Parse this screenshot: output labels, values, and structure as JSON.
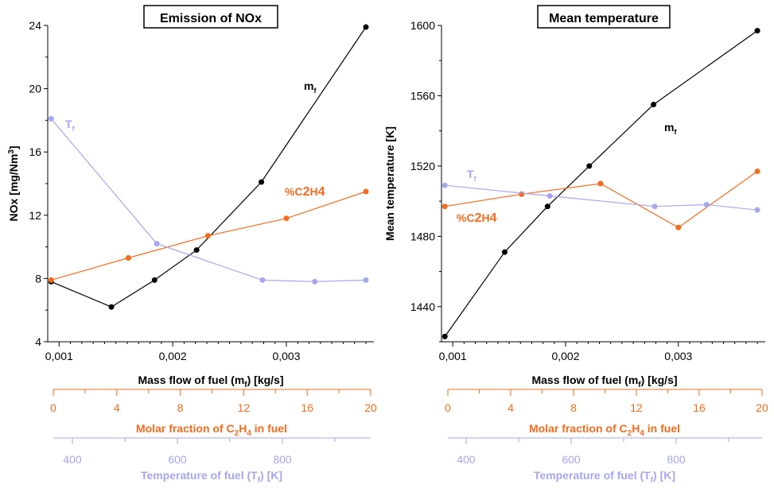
{
  "colors": {
    "mf": "#000000",
    "c2h4": "#f26b1d",
    "tf": "#a6a6f0",
    "axis": "#000000"
  },
  "shared_axes": {
    "x_mf": {
      "label": "Mass flow of fuel (m",
      "sub": "f",
      "tail": ") [kg/s]",
      "ticks": [
        "0,001",
        "0,002",
        "0,003"
      ]
    },
    "x_c2h4": {
      "label_pre": "Molar fraction of C",
      "sub1": "2",
      "mid": "H",
      "sub2": "4",
      "label_post": " in fuel",
      "ticks": [
        "0",
        "4",
        "8",
        "12",
        "16",
        "20"
      ]
    },
    "x_tf": {
      "label": "Temperature of fuel (T",
      "sub": "f",
      "tail": ") [K]",
      "ticks": [
        "400",
        "600",
        "800"
      ]
    }
  },
  "chart_data": [
    {
      "type": "line",
      "title": "Emission of NOx",
      "ylabel": "NOx [mg/Nm3]",
      "ylim": [
        4,
        24
      ],
      "yticks": [
        4,
        8,
        12,
        16,
        20,
        24
      ],
      "series": [
        {
          "name": "mf",
          "label": "m",
          "label_sub": "f",
          "color": "#000000",
          "points": [
            [
              0.00093,
              7.8
            ],
            [
              0.00146,
              6.2
            ],
            [
              0.00184,
              7.9
            ],
            [
              0.00221,
              9.8
            ],
            [
              0.00278,
              14.1
            ],
            [
              0.0037,
              23.9
            ]
          ]
        },
        {
          "name": "%C2H4",
          "label": "%C2H4",
          "color": "#f26b1d",
          "points": [
            [
              0.00093,
              7.9
            ],
            [
              0.00161,
              9.3
            ],
            [
              0.00231,
              10.7
            ],
            [
              0.003,
              11.8
            ],
            [
              0.0037,
              13.5
            ]
          ]
        },
        {
          "name": "Tf",
          "label": "T",
          "label_sub": "f",
          "color": "#a6a6f0",
          "points": [
            [
              0.00093,
              18.1
            ],
            [
              0.00186,
              10.2
            ],
            [
              0.00279,
              7.9
            ],
            [
              0.00325,
              7.8
            ],
            [
              0.0037,
              7.9
            ]
          ]
        }
      ]
    },
    {
      "type": "line",
      "title": "Mean temperature",
      "ylabel": "Mean temperature [K]",
      "ylim": [
        1420,
        1600
      ],
      "yticks": [
        1440,
        1480,
        1520,
        1560,
        1600
      ],
      "series": [
        {
          "name": "mf",
          "label": "m",
          "label_sub": "f",
          "color": "#000000",
          "points": [
            [
              0.00093,
              1423
            ],
            [
              0.00146,
              1471
            ],
            [
              0.00184,
              1497
            ],
            [
              0.00221,
              1520
            ],
            [
              0.00278,
              1555
            ],
            [
              0.0037,
              1597
            ]
          ]
        },
        {
          "name": "%C2H4",
          "label": "%C2H4",
          "color": "#f26b1d",
          "points": [
            [
              0.00093,
              1497
            ],
            [
              0.00161,
              1504
            ],
            [
              0.00231,
              1510
            ],
            [
              0.003,
              1485
            ],
            [
              0.0037,
              1517
            ]
          ]
        },
        {
          "name": "Tf",
          "label": "T",
          "label_sub": "f",
          "color": "#a6a6f0",
          "points": [
            [
              0.00093,
              1509
            ],
            [
              0.00186,
              1503
            ],
            [
              0.00279,
              1497
            ],
            [
              0.00325,
              1498
            ],
            [
              0.0037,
              1495
            ]
          ]
        }
      ]
    }
  ]
}
